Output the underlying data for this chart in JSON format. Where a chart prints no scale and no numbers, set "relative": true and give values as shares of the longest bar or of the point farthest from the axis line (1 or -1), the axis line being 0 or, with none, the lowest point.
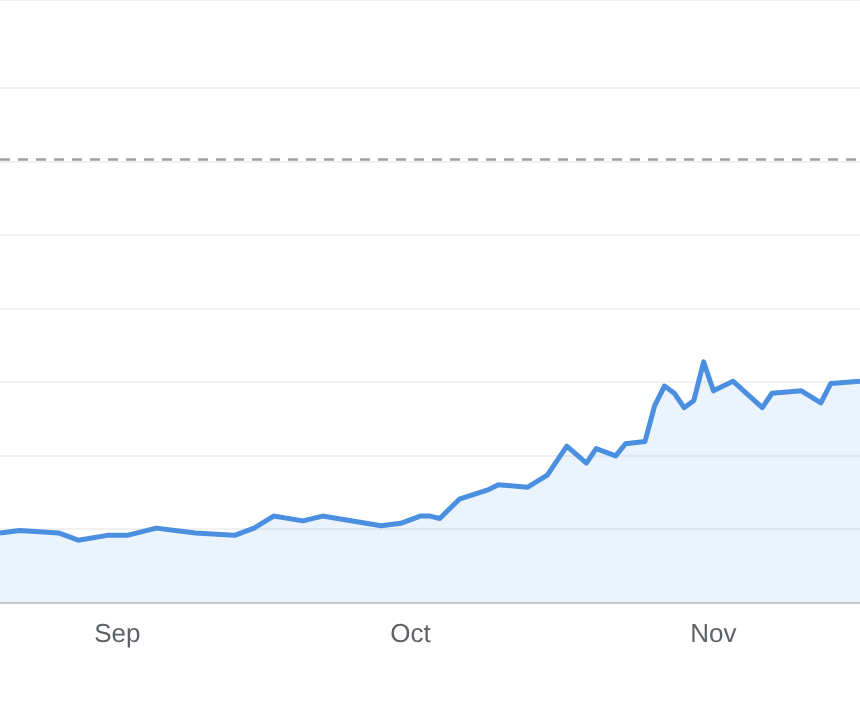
{
  "chart_data": {
    "type": "area",
    "relative": true,
    "grid": "y",
    "xlim": [
      "--08-20",
      "--11-16"
    ],
    "xticks": [
      {
        "value": "--09-01",
        "label": "Sep"
      },
      {
        "value": "--10-01",
        "label": "Oct"
      },
      {
        "value": "--11-01",
        "label": "Nov"
      }
    ],
    "ref_lines": [
      {
        "axis": "y",
        "value": 1.84,
        "color": "#9e9e9e",
        "line_style": "dashed"
      }
    ],
    "series": [
      {
        "color": "#4a8fe0",
        "x": [
          "--08-20",
          "--08-22",
          "--08-26",
          "--08-28",
          "--08-31",
          "--09-02",
          "--09-05",
          "--09-09",
          "--09-13",
          "--09-15",
          "--09-17",
          "--09-20",
          "--09-22",
          "--09-28",
          "--09-30",
          "--10-02",
          "--10-03",
          "--10-04",
          "--10-06",
          "--10-09",
          "--10-10",
          "--10-13",
          "--10-15",
          "--10-17",
          "--10-19",
          "--10-20",
          "--10-22",
          "--10-23",
          "--10-25",
          "--10-26",
          "--10-27",
          "--10-28",
          "--10-29",
          "--10-30",
          "--10-31",
          "--11-01",
          "--11-03",
          "--11-06",
          "--11-07",
          "--11-10",
          "--11-12",
          "--11-13",
          "--11-16"
        ],
        "values": [
          0.29,
          0.3,
          0.29,
          0.26,
          0.28,
          0.28,
          0.31,
          0.29,
          0.28,
          0.31,
          0.36,
          0.34,
          0.36,
          0.32,
          0.33,
          0.36,
          0.36,
          0.35,
          0.43,
          0.47,
          0.49,
          0.48,
          0.53,
          0.65,
          0.58,
          0.64,
          0.61,
          0.66,
          0.67,
          0.82,
          0.9,
          0.87,
          0.81,
          0.84,
          1,
          0.88,
          0.92,
          0.81,
          0.87,
          0.88,
          0.83,
          0.91,
          0.92
        ]
      }
    ]
  }
}
